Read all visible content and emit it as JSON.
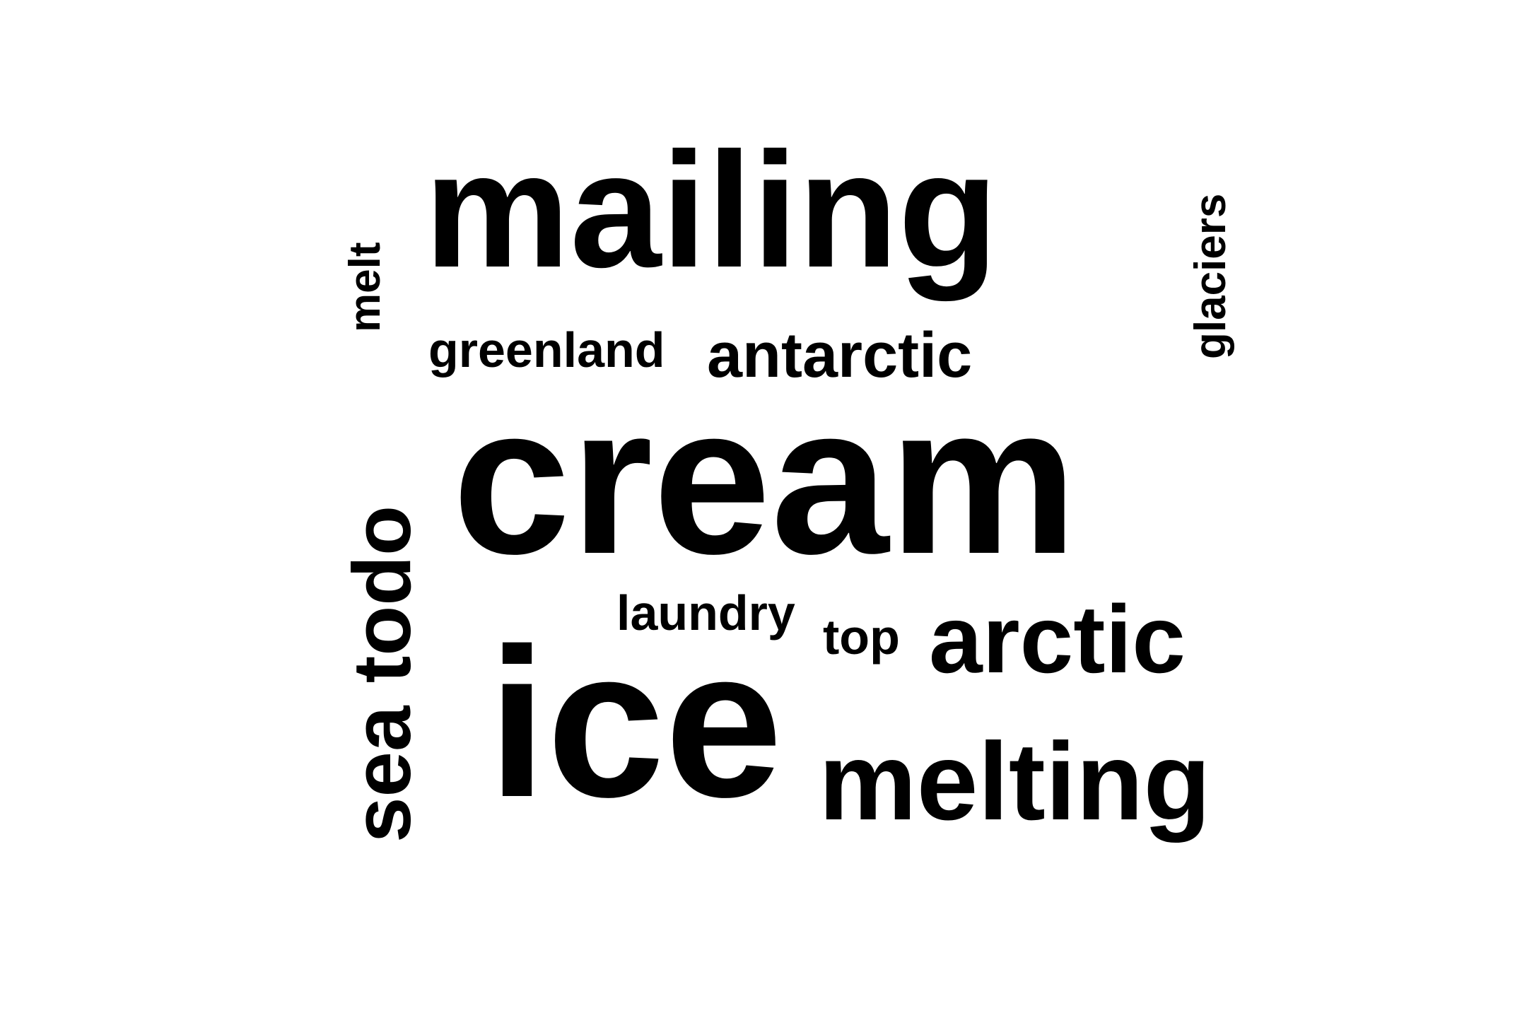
{
  "word_cloud": {
    "text_color": "#000000",
    "background_color": "#ffffff",
    "words": [
      {
        "text": "mailing",
        "orientation": "horizontal"
      },
      {
        "text": "cream",
        "orientation": "horizontal"
      },
      {
        "text": "ice",
        "orientation": "horizontal"
      },
      {
        "text": "melting",
        "orientation": "horizontal"
      },
      {
        "text": "arctic",
        "orientation": "horizontal"
      },
      {
        "text": "antarctic",
        "orientation": "horizontal"
      },
      {
        "text": "greenland",
        "orientation": "horizontal"
      },
      {
        "text": "laundry",
        "orientation": "horizontal"
      },
      {
        "text": "top",
        "orientation": "horizontal"
      },
      {
        "text": "sea todo",
        "orientation": "vertical"
      },
      {
        "text": "melt",
        "orientation": "vertical"
      },
      {
        "text": "glaciers",
        "orientation": "vertical"
      }
    ]
  }
}
